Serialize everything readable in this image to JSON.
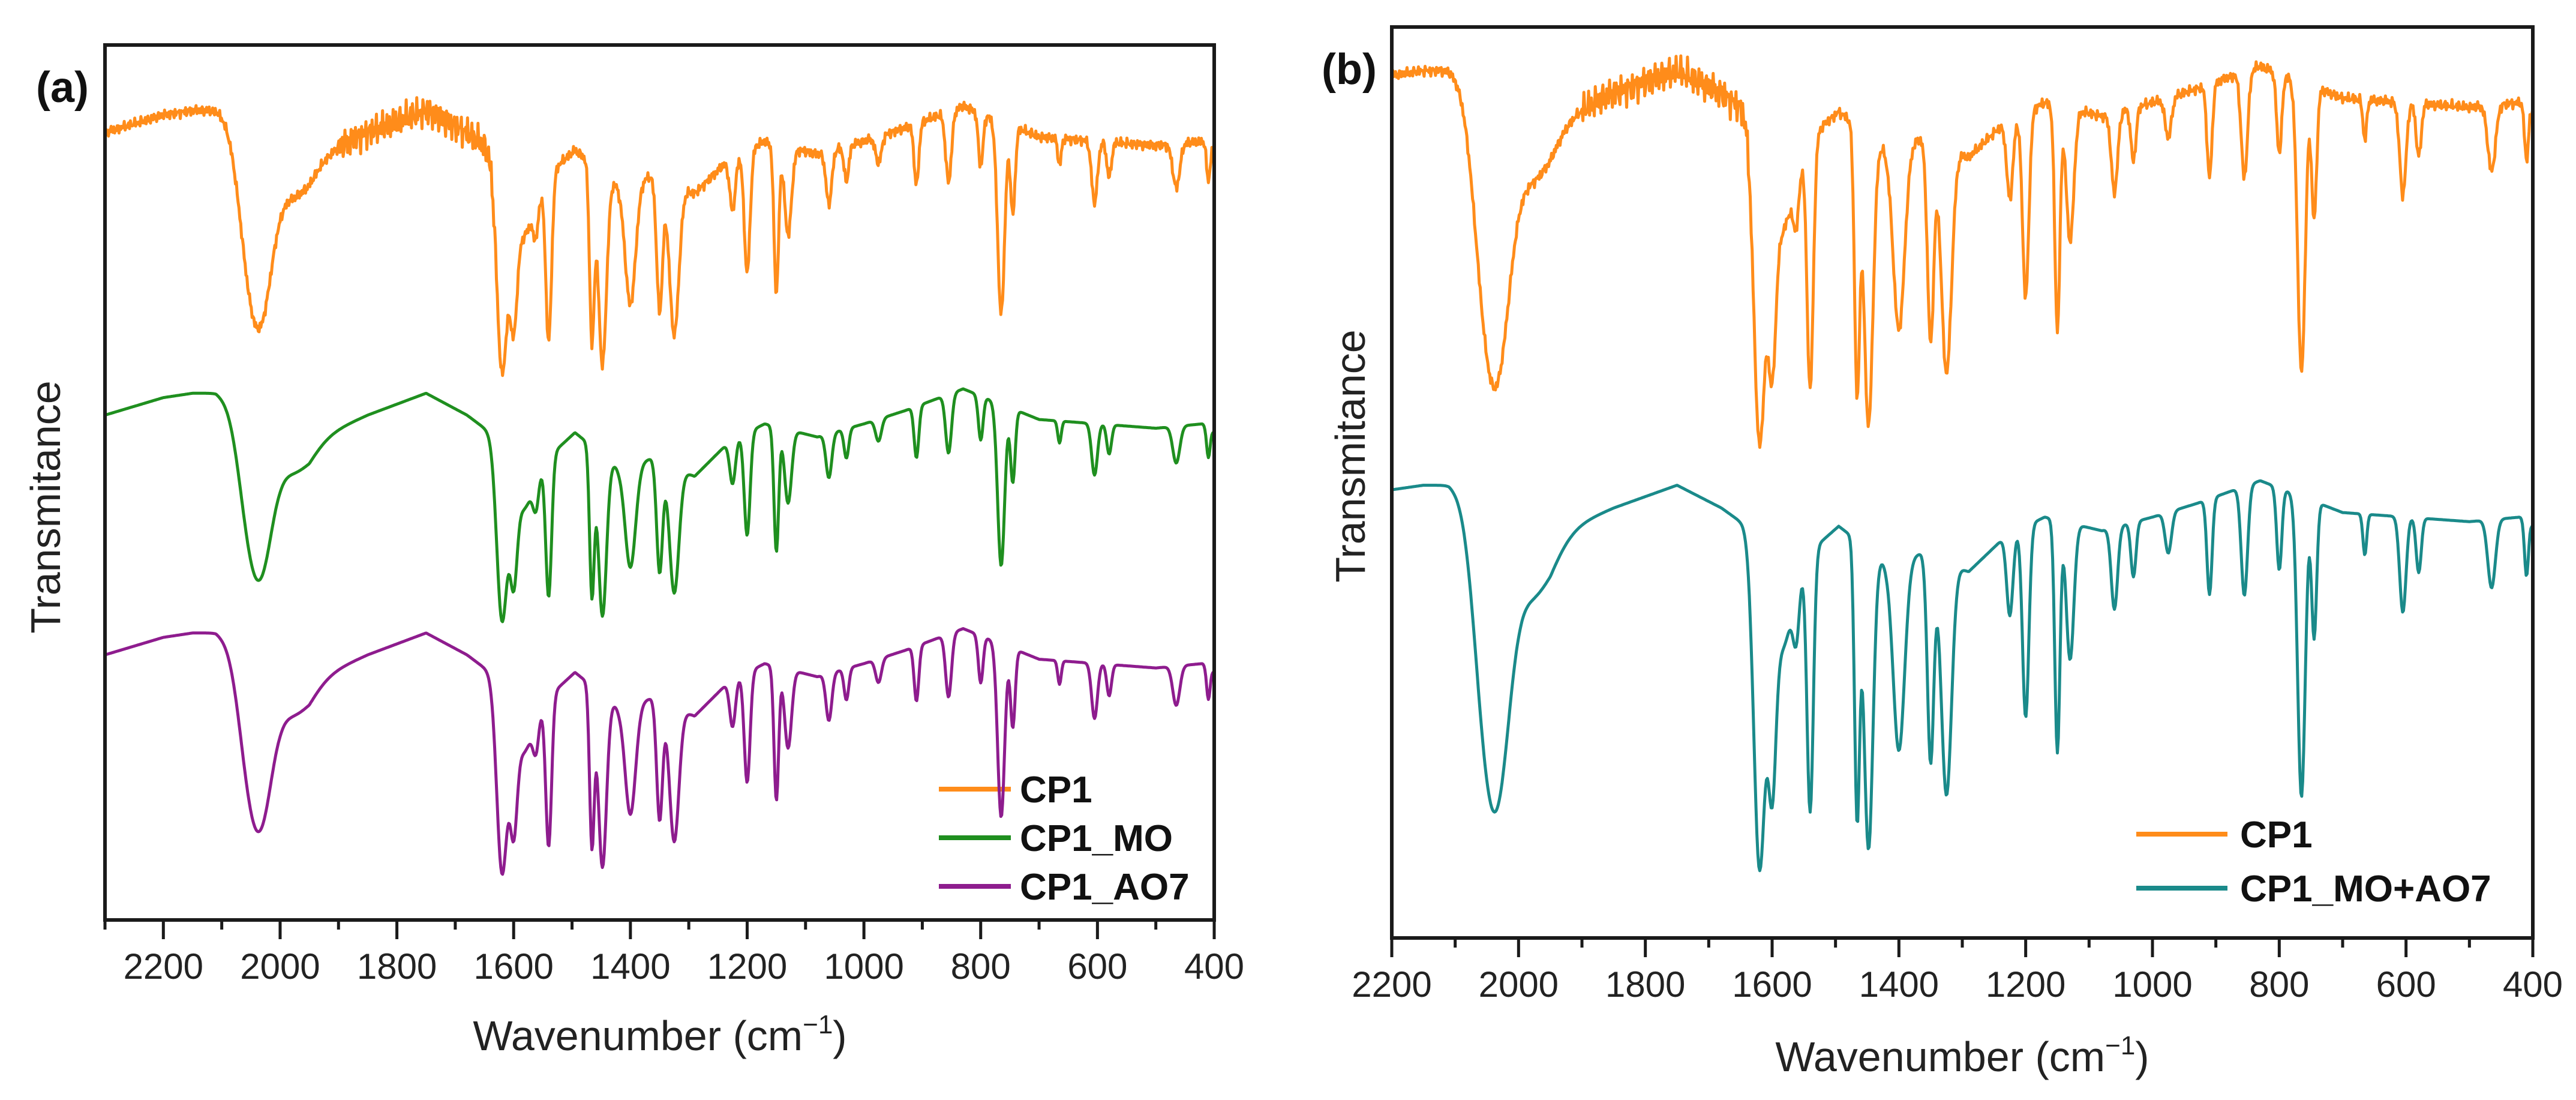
{
  "chart_data": [
    {
      "type": "line",
      "title": "(a)",
      "xlabel": {
        "main": "Wavenumber (cm",
        "sup": "−1",
        "end": ")"
      },
      "ylabel": "Transmitance",
      "xlim": [
        2300,
        400
      ],
      "ylim": [
        0,
        100
      ],
      "xticks": [
        2200,
        2000,
        1800,
        1600,
        1400,
        1200,
        1000,
        800,
        600,
        400
      ],
      "xtick_labels": [
        "2200",
        "2000",
        "1800",
        "1600",
        "1400",
        "1200",
        "1000",
        "800",
        "600",
        "400"
      ],
      "minor_tick_step": 100,
      "grid": false,
      "legend_position": "bottom-right",
      "series": [
        {
          "name": "CP1",
          "color": "#ff8c1a",
          "offset": 0,
          "scale": 1.0,
          "noisy": true
        },
        {
          "name": "CP1_MO",
          "color": "#1f8f1f",
          "offset": -32.3,
          "scale": 0.84,
          "noisy": false
        },
        {
          "name": "CP1_AO7",
          "color": "#8e1c8e",
          "offset": -59.7,
          "scale": 0.9,
          "noisy": false
        }
      ]
    },
    {
      "type": "line",
      "title": "(b)",
      "xlabel": {
        "main": "Wavenumber (cm",
        "sup": "−1",
        "end": ")"
      },
      "ylabel": "Transmitance",
      "xlim": [
        2200,
        400
      ],
      "ylim": [
        0,
        100
      ],
      "xticks": [
        2200,
        2000,
        1800,
        1600,
        1400,
        1200,
        1000,
        800,
        600,
        400
      ],
      "xtick_labels": [
        "2200",
        "2000",
        "1800",
        "1600",
        "1400",
        "1200",
        "1000",
        "800",
        "600",
        "400"
      ],
      "minor_tick_step": 100,
      "grid": false,
      "legend_position": "bottom-right",
      "series": [
        {
          "name": "CP1",
          "color": "#ff8c1a",
          "offset": 2.7,
          "scale": 1.45,
          "noisy": true
        },
        {
          "name": "CP1_MO+AO7",
          "color": "#1a8a8a",
          "offset": -42.8,
          "scale": 1.5,
          "noisy": false
        }
      ]
    }
  ],
  "spectrum_model": {
    "baseline": [
      [
        2300,
        90
      ],
      [
        2200,
        92
      ],
      [
        2150,
        92.5
      ],
      [
        2110,
        92.5
      ],
      [
        2000,
        88
      ],
      [
        1950,
        87
      ],
      [
        1850,
        90
      ],
      [
        1750,
        92.5
      ],
      [
        1680,
        90
      ],
      [
        1640,
        88
      ],
      [
        1560,
        84
      ],
      [
        1495,
        88
      ],
      [
        1420,
        84
      ],
      [
        1365,
        85
      ],
      [
        1290,
        83
      ],
      [
        1230,
        87
      ],
      [
        1170,
        89
      ],
      [
        1080,
        87.5
      ],
      [
        1000,
        89
      ],
      [
        930,
        90.5
      ],
      [
        830,
        93
      ],
      [
        700,
        89.5
      ],
      [
        500,
        88.5
      ],
      [
        420,
        89
      ],
      [
        400,
        88
      ]
    ],
    "bands": [
      [
        2055,
        12,
        18
      ],
      [
        2030,
        14,
        18
      ],
      [
        1985,
        5,
        35
      ],
      [
        1620,
        24,
        9
      ],
      [
        1600,
        13,
        6
      ],
      [
        1585,
        7,
        15
      ],
      [
        1540,
        19,
        5
      ],
      [
        1562,
        4,
        5
      ],
      [
        1466,
        20,
        4
      ],
      [
        1448,
        22,
        7
      ],
      [
        1400,
        14,
        9
      ],
      [
        1350,
        15,
        5
      ],
      [
        1325,
        17,
        8
      ],
      [
        1225,
        6,
        5
      ],
      [
        1200,
        14,
        5
      ],
      [
        1150,
        17,
        4
      ],
      [
        1130,
        10,
        6
      ],
      [
        1060,
        6,
        5
      ],
      [
        1030,
        4,
        4
      ],
      [
        975,
        3,
        5
      ],
      [
        910,
        7,
        4
      ],
      [
        855,
        8,
        5
      ],
      [
        800,
        6,
        4
      ],
      [
        765,
        22,
        6
      ],
      [
        745,
        10,
        4
      ],
      [
        665,
        3,
        3
      ],
      [
        605,
        7,
        5
      ],
      [
        580,
        4,
        4
      ],
      [
        465,
        5,
        6
      ],
      [
        410,
        4,
        3
      ]
    ]
  }
}
